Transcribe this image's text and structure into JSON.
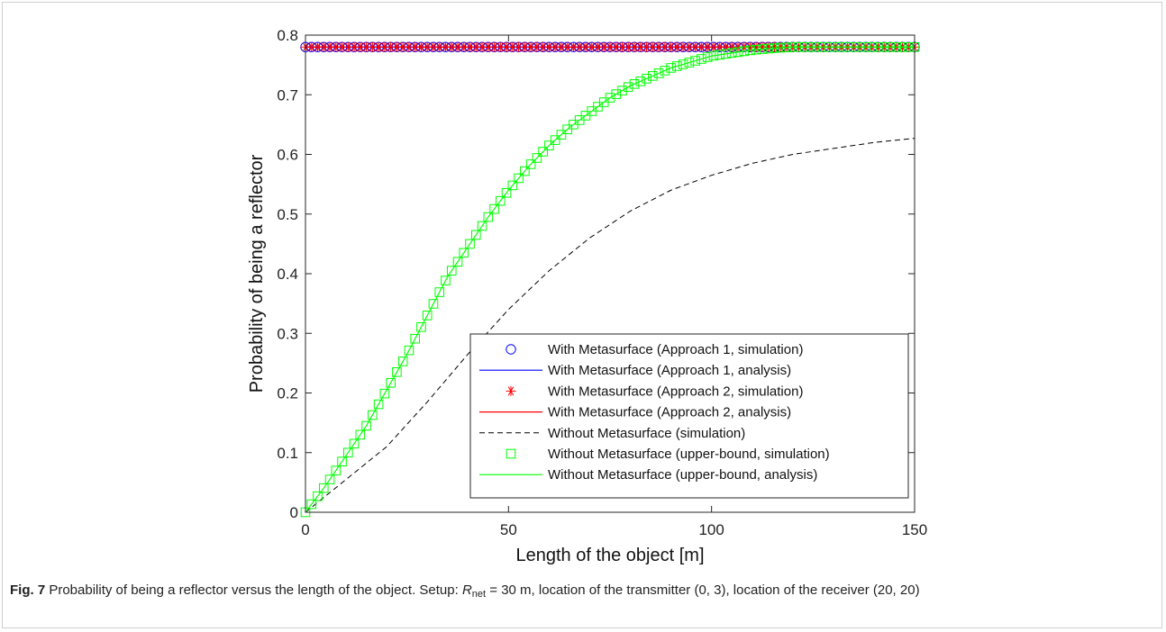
{
  "chart_data": {
    "type": "line",
    "xlabel": "Length of the object [m]",
    "ylabel": "Probability of being a reflector",
    "xlim": [
      0,
      150
    ],
    "ylim": [
      0,
      0.8
    ],
    "xticks": [
      0,
      50,
      100,
      150
    ],
    "yticks": [
      0,
      0.1,
      0.2,
      0.3,
      0.4,
      0.5,
      0.6,
      0.7,
      0.8
    ],
    "xtick_labels": [
      "0",
      "50",
      "100",
      "150"
    ],
    "ytick_labels": [
      "0",
      "0.1",
      "0.2",
      "0.3",
      "0.4",
      "0.5",
      "0.6",
      "0.7",
      "0.8"
    ],
    "grid": false,
    "legend_position": "bottom-right",
    "series": [
      {
        "name": "With Metasurface (Approach 1, simulation)",
        "color": "#0000ff",
        "style": "circle-marker",
        "x": [
          0,
          150
        ],
        "y": [
          0.78,
          0.78
        ]
      },
      {
        "name": "With Metasurface (Approach 1, analysis)",
        "color": "#0000ff",
        "style": "solid",
        "x": [
          0,
          150
        ],
        "y": [
          0.78,
          0.78
        ]
      },
      {
        "name": "With Metasurface (Approach 2, simulation)",
        "color": "#ff0000",
        "style": "star-marker",
        "x": [
          0,
          150
        ],
        "y": [
          0.78,
          0.78
        ]
      },
      {
        "name": "With Metasurface (Approach 2, analysis)",
        "color": "#ff0000",
        "style": "solid",
        "x": [
          0,
          150
        ],
        "y": [
          0.78,
          0.78
        ]
      },
      {
        "name": "Without Metasurface (simulation)",
        "color": "#000000",
        "style": "dashed",
        "x": [
          0,
          10,
          20,
          30,
          40,
          50,
          60,
          70,
          80,
          90,
          100,
          110,
          120,
          130,
          140,
          150
        ],
        "y": [
          0,
          0.055,
          0.11,
          0.185,
          0.265,
          0.34,
          0.405,
          0.46,
          0.505,
          0.54,
          0.565,
          0.585,
          0.6,
          0.61,
          0.62,
          0.627
        ]
      },
      {
        "name": "Without Metasurface (upper-bound, simulation)",
        "color": "#00ff00",
        "style": "square-marker",
        "x": [
          0,
          5,
          10,
          15,
          20,
          25,
          30,
          35,
          40,
          45,
          50,
          55,
          60,
          65,
          70,
          75,
          80,
          85,
          90,
          95,
          100,
          105,
          110,
          115,
          120,
          130,
          140,
          150
        ],
        "y": [
          0,
          0.045,
          0.095,
          0.145,
          0.205,
          0.265,
          0.33,
          0.395,
          0.445,
          0.495,
          0.54,
          0.58,
          0.615,
          0.645,
          0.67,
          0.695,
          0.715,
          0.73,
          0.745,
          0.755,
          0.765,
          0.77,
          0.775,
          0.778,
          0.78,
          0.78,
          0.78,
          0.78
        ]
      },
      {
        "name": "Without Metasurface (upper-bound, analysis)",
        "color": "#00ff00",
        "style": "solid",
        "x": [
          0,
          5,
          10,
          15,
          20,
          25,
          30,
          35,
          40,
          45,
          50,
          55,
          60,
          65,
          70,
          75,
          80,
          85,
          90,
          95,
          100,
          105,
          110,
          115,
          120,
          130,
          140,
          150
        ],
        "y": [
          0,
          0.045,
          0.095,
          0.145,
          0.205,
          0.265,
          0.33,
          0.395,
          0.445,
          0.495,
          0.54,
          0.58,
          0.615,
          0.645,
          0.67,
          0.695,
          0.715,
          0.73,
          0.745,
          0.755,
          0.765,
          0.77,
          0.775,
          0.778,
          0.78,
          0.78,
          0.78,
          0.78
        ]
      }
    ]
  },
  "caption": {
    "label": "Fig. 7",
    "text_main": " Probability of being a reflector versus the length of the object. Setup: ",
    "r_symbol": "R",
    "r_sub": "net",
    "text_eq": " = 30 m, location of the transmitter (0, 3), location of the receiver (20, 20)"
  }
}
